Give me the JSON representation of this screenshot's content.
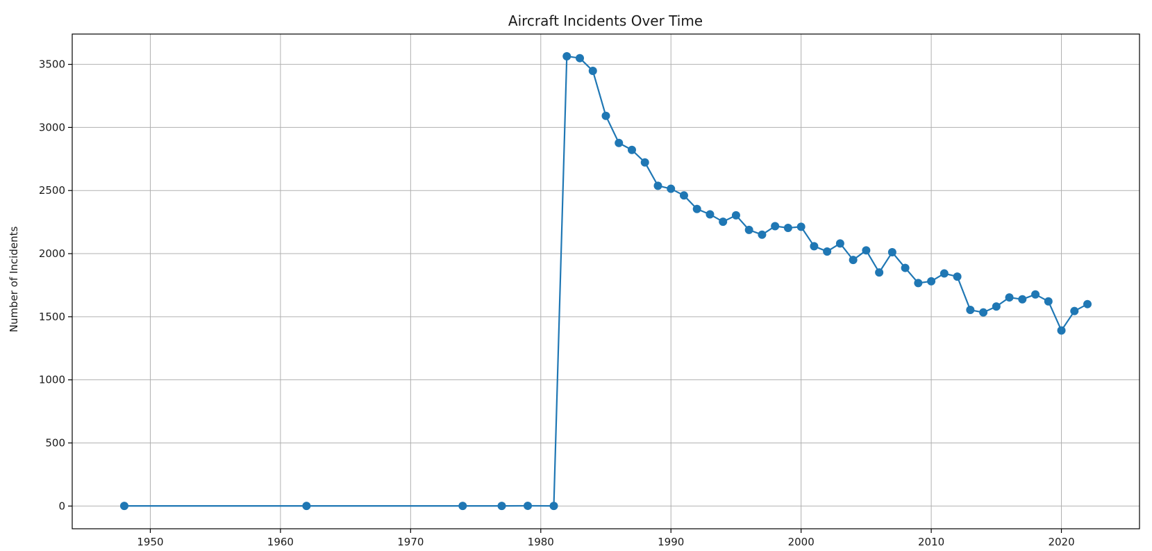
{
  "chart_data": {
    "type": "line",
    "title": "Aircraft Incidents Over Time",
    "xlabel": "",
    "ylabel": "Number of Incidents",
    "xlim": [
      1944,
      2026
    ],
    "ylim": [
      -180,
      3740
    ],
    "x_ticks": [
      1950,
      1960,
      1970,
      1980,
      1990,
      2000,
      2010,
      2020
    ],
    "y_ticks": [
      0,
      500,
      1000,
      1500,
      2000,
      2500,
      3000,
      3500
    ],
    "grid": true,
    "legend": "none",
    "series": [
      {
        "color": "#1f77b4",
        "marker": "circle",
        "x": [
          1948,
          1962,
          1974,
          1977,
          1979,
          1981,
          1982,
          1983,
          1984,
          1985,
          1986,
          1987,
          1988,
          1989,
          1990,
          1991,
          1992,
          1993,
          1994,
          1995,
          1996,
          1997,
          1998,
          1999,
          2000,
          2001,
          2002,
          2003,
          2004,
          2005,
          2006,
          2007,
          2008,
          2009,
          2010,
          2011,
          2012,
          2013,
          2014,
          2015,
          2016,
          2017,
          2018,
          2019,
          2020,
          2021,
          2022
        ],
        "values": [
          1,
          1,
          1,
          1,
          2,
          1,
          3564,
          3549,
          3448,
          3092,
          2877,
          2822,
          2723,
          2538,
          2514,
          2461,
          2354,
          2311,
          2253,
          2304,
          2188,
          2150,
          2218,
          2204,
          2213,
          2059,
          2017,
          2081,
          1950,
          2026,
          1851,
          2011,
          1887,
          1767,
          1781,
          1843,
          1818,
          1554,
          1534,
          1581,
          1653,
          1638,
          1677,
          1622,
          1391,
          1545,
          1600
        ]
      }
    ]
  }
}
